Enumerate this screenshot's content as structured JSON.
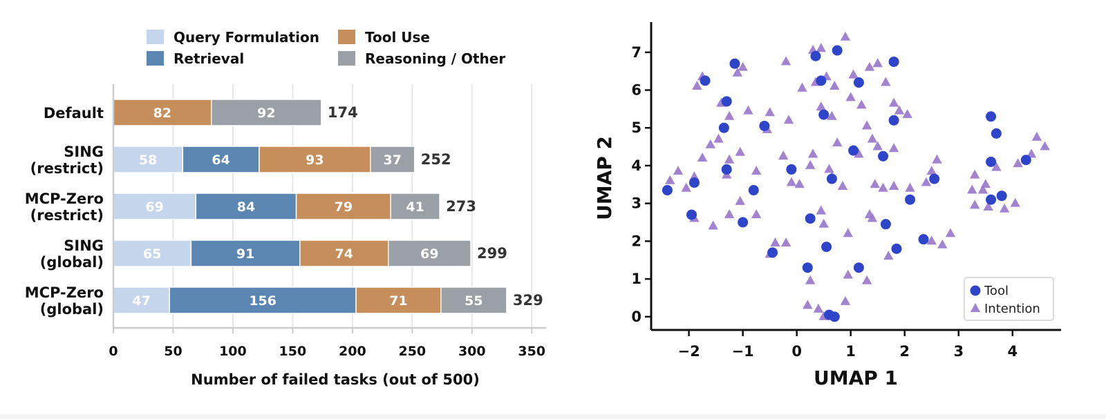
{
  "chart_data": [
    {
      "type": "bar",
      "orientation": "horizontal",
      "stacked": true,
      "categories": [
        "Default",
        "SING (restrict)",
        "MCP-Zero (restrict)",
        "SING (global)",
        "MCP-Zero (global)"
      ],
      "category_lines": [
        [
          "Default"
        ],
        [
          "SING",
          "(restrict)"
        ],
        [
          "MCP-Zero",
          "(restrict)"
        ],
        [
          "SING",
          "(global)"
        ],
        [
          "MCP-Zero",
          "(global)"
        ]
      ],
      "series": [
        {
          "name": "Query Formulation",
          "color": "#c5d6ec",
          "values": [
            0,
            58,
            69,
            65,
            47
          ]
        },
        {
          "name": "Retrieval",
          "color": "#5b86b2",
          "values": [
            0,
            64,
            84,
            91,
            156
          ]
        },
        {
          "name": "Tool Use",
          "color": "#c68e5b",
          "values": [
            82,
            93,
            79,
            74,
            71
          ]
        },
        {
          "name": "Reasoning / Other",
          "color": "#9aa0a6",
          "values": [
            92,
            37,
            41,
            69,
            55
          ]
        }
      ],
      "totals": [
        174,
        252,
        273,
        299,
        329
      ],
      "xlabel": "Number of failed tasks (out of 500)",
      "xlim": [
        0,
        362
      ],
      "xticks": [
        0,
        50,
        100,
        150,
        200,
        250,
        300,
        350
      ],
      "grid": "x",
      "legend": "top"
    },
    {
      "type": "scatter",
      "xlabel": "UMAP 1",
      "ylabel": "UMAP 2",
      "xlim": [
        -2.7,
        4.9
      ],
      "ylim": [
        -0.35,
        7.8
      ],
      "xticks": [
        -2,
        -1,
        0,
        1,
        2,
        3,
        4
      ],
      "xtick_labels": [
        "−2",
        "−1",
        "0",
        "1",
        "2",
        "3",
        "4"
      ],
      "yticks": [
        0,
        1,
        2,
        3,
        4,
        5,
        6,
        7
      ],
      "legend": "bottom-right",
      "series": [
        {
          "name": "Tool",
          "marker": "circle",
          "color": "#2f45c9",
          "x": [
            0.35,
            0.75,
            1.8,
            -1.15,
            -1.7,
            0.45,
            1.15,
            -1.3,
            -1.35,
            0.5,
            -0.6,
            1.8,
            1.05,
            1.6,
            -1.3,
            -0.1,
            0.65,
            -0.8,
            -1.9,
            -2.4,
            -1.95,
            0.25,
            -1.0,
            1.65,
            0.55,
            -0.45,
            1.85,
            2.35,
            0.2,
            1.15,
            0.6,
            0.7,
            2.1,
            2.55,
            3.6,
            3.7,
            3.6,
            3.6,
            3.8,
            4.25
          ],
          "y": [
            6.9,
            7.05,
            6.75,
            6.7,
            6.25,
            6.25,
            6.2,
            5.7,
            5.0,
            5.35,
            5.05,
            5.2,
            4.4,
            4.25,
            3.9,
            3.9,
            3.65,
            3.35,
            3.55,
            3.35,
            2.7,
            2.6,
            2.5,
            2.45,
            1.85,
            1.7,
            1.8,
            2.05,
            1.3,
            1.3,
            0.05,
            0.0,
            3.1,
            3.65,
            5.3,
            4.85,
            4.1,
            3.1,
            3.2,
            4.15
          ]
        },
        {
          "name": "Intention",
          "marker": "triangle",
          "color": "#9a78cc",
          "x": [
            0.9,
            0.3,
            0.45,
            1.35,
            1.5,
            1.05,
            -0.2,
            0.1,
            0.55,
            -1.1,
            -1.85,
            -1.75,
            -1.0,
            0.35,
            0.7,
            1.0,
            1.2,
            1.65,
            1.9,
            2.05,
            -1.4,
            -1.25,
            -0.9,
            -0.5,
            -0.15,
            0.45,
            0.65,
            1.3,
            1.4,
            1.8,
            -1.6,
            -1.75,
            -1.45,
            -1.25,
            -1.05,
            -0.55,
            -0.25,
            0.25,
            0.75,
            1.5,
            1.8,
            -2.2,
            -2.35,
            -1.9,
            -2.05,
            -1.3,
            -0.75,
            -0.1,
            0.05,
            0.6,
            1.45,
            1.8,
            -1.25,
            -1.9,
            -1.55,
            -1.05,
            -0.75,
            -0.4,
            0.5,
            0.95,
            1.4,
            1.7,
            2.5,
            2.7,
            2.85,
            3.25,
            3.45,
            3.85,
            4.05,
            4.45,
            4.6,
            3.3,
            3.55,
            3.3,
            3.5,
            3.7,
            4.1,
            4.35,
            0.3,
            0.65,
            0.85,
            0.45,
            1.15,
            1.35,
            1.6,
            2.6,
            2.5,
            2.1,
            2.4,
            0.25,
            1.3,
            0.2,
            0.5,
            0.9,
            0.4,
            0.95,
            -0.5,
            -0.2
          ],
          "y": [
            7.4,
            7.05,
            7.1,
            6.6,
            6.7,
            6.4,
            6.75,
            6.05,
            6.35,
            6.45,
            6.1,
            6.35,
            6.6,
            6.2,
            6.1,
            5.8,
            5.6,
            6.2,
            5.45,
            5.35,
            5.65,
            5.3,
            5.45,
            5.4,
            5.2,
            5.55,
            5.3,
            5.05,
            4.7,
            5.65,
            4.55,
            4.2,
            4.7,
            4.15,
            4.35,
            4.95,
            4.25,
            4.0,
            4.6,
            4.5,
            4.45,
            3.85,
            3.6,
            3.7,
            3.4,
            3.75,
            3.85,
            3.55,
            3.5,
            3.9,
            3.5,
            3.45,
            2.7,
            2.6,
            2.4,
            3.05,
            2.7,
            1.95,
            2.45,
            2.2,
            2.6,
            1.6,
            2.0,
            1.9,
            2.2,
            3.35,
            3.35,
            2.85,
            3.0,
            4.75,
            4.5,
            2.95,
            2.9,
            3.75,
            3.5,
            3.95,
            4.05,
            4.3,
            4.3,
            3.7,
            3.45,
            2.8,
            4.3,
            2.7,
            3.4,
            4.15,
            3.85,
            3.4,
            3.55,
            0.95,
            0.95,
            0.3,
            0.0,
            0.4,
            0.2,
            1.1,
            1.65,
            1.95
          ]
        }
      ]
    }
  ]
}
